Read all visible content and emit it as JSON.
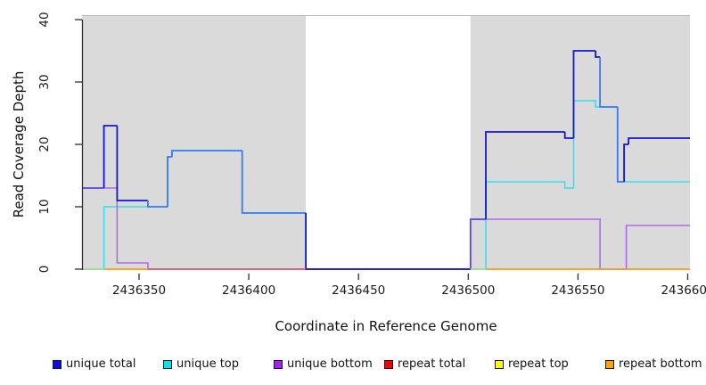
{
  "figure": {
    "title": "",
    "x_axis_title": "Coordinate in Reference Genome",
    "y_axis_title": "Read Coverage Depth"
  },
  "chart_data": {
    "type": "line",
    "step": true,
    "title": "",
    "xlabel": "Coordinate in Reference Genome",
    "ylabel": "Read Coverage Depth",
    "xlim": [
      2436324,
      2436601
    ],
    "ylim": [
      0,
      40
    ],
    "grid": false,
    "x_ticks": [
      {
        "value": 2436350,
        "label": "2436350"
      },
      {
        "value": 2436400,
        "label": "2436400"
      },
      {
        "value": 2436450,
        "label": "2436450"
      },
      {
        "value": 2436500,
        "label": "2436500"
      },
      {
        "value": 2436550,
        "label": "2436550"
      },
      {
        "value": 2436600,
        "label": "2436600"
      }
    ],
    "y_ticks": [
      {
        "value": 0,
        "label": "0"
      },
      {
        "value": 10,
        "label": "10"
      },
      {
        "value": 20,
        "label": "20"
      },
      {
        "value": 30,
        "label": "30"
      },
      {
        "value": 40,
        "label": "40"
      }
    ],
    "shade_color": "#DADADA",
    "shaded_regions": [
      {
        "from": 2436324,
        "to": 2436426
      },
      {
        "from": 2436501,
        "to": 2436601
      }
    ],
    "series": [
      {
        "name": "unique total",
        "role": "total",
        "color": "#1515CF",
        "color_over_top": "#3D79F2",
        "color_over_bottom": "#5E48E8",
        "steps": [
          [
            2436324,
            13
          ],
          [
            2436334,
            23
          ],
          [
            2436340,
            11
          ],
          [
            2436354,
            10
          ],
          [
            2436363,
            18
          ],
          [
            2436365,
            19
          ],
          [
            2436397,
            9
          ],
          [
            2436426,
            0
          ],
          [
            2436501,
            8
          ],
          [
            2436508,
            22
          ],
          [
            2436544,
            21
          ],
          [
            2436548,
            35
          ],
          [
            2436558,
            34
          ],
          [
            2436560,
            26
          ],
          [
            2436568,
            14
          ],
          [
            2436571,
            20
          ],
          [
            2436573,
            21
          ]
        ]
      },
      {
        "name": "unique top",
        "role": "top",
        "color": "#36E0EE",
        "steps": [
          [
            2436324,
            0
          ],
          [
            2436334,
            10
          ],
          [
            2436363,
            18
          ],
          [
            2436365,
            19
          ],
          [
            2436397,
            9
          ],
          [
            2436426,
            0
          ],
          [
            2436508,
            14
          ],
          [
            2436544,
            13
          ],
          [
            2436548,
            27
          ],
          [
            2436558,
            26
          ],
          [
            2436568,
            14
          ]
        ]
      },
      {
        "name": "unique bottom",
        "role": "bottom",
        "color": "#B269E9",
        "steps": [
          [
            2436324,
            13
          ],
          [
            2436340,
            1
          ],
          [
            2436354,
            0
          ],
          [
            2436501,
            8
          ],
          [
            2436560,
            0
          ],
          [
            2436572,
            7
          ]
        ]
      },
      {
        "name": "repeat total",
        "role": "repeat_total",
        "color": "#E05677",
        "steps": [
          [
            2436324,
            0
          ]
        ]
      },
      {
        "name": "repeat top",
        "role": "repeat_top",
        "color": "#FFFF00",
        "steps": [
          [
            2436324,
            0
          ]
        ]
      },
      {
        "name": "repeat bottom",
        "role": "repeat_bottom",
        "color": "#FF9D26",
        "steps": [
          [
            2436324,
            0
          ]
        ]
      }
    ],
    "zero_line_segments": [
      {
        "from": 2436324,
        "to": 2436334,
        "color": "#A9DFA3"
      },
      {
        "from": 2436334,
        "to": 2436354,
        "color": "#FF9D26"
      },
      {
        "from": 2436354,
        "to": 2436426,
        "color": "#E05677"
      },
      {
        "from": 2436501,
        "to": 2436508,
        "color": "#A9DFA3"
      },
      {
        "from": 2436508,
        "to": 2436601,
        "color": "#FF9D26"
      }
    ],
    "legend": {
      "position": "bottom",
      "entries": [
        {
          "label": "unique total",
          "color": "#0A0AE6"
        },
        {
          "label": "unique top",
          "color": "#00E5EE"
        },
        {
          "label": "unique bottom",
          "color": "#A322F0"
        },
        {
          "label": "repeat total",
          "color": "#F50000"
        },
        {
          "label": "repeat top",
          "color": "#FFFF00"
        },
        {
          "label": "repeat bottom",
          "color": "#FFA500"
        }
      ]
    }
  }
}
